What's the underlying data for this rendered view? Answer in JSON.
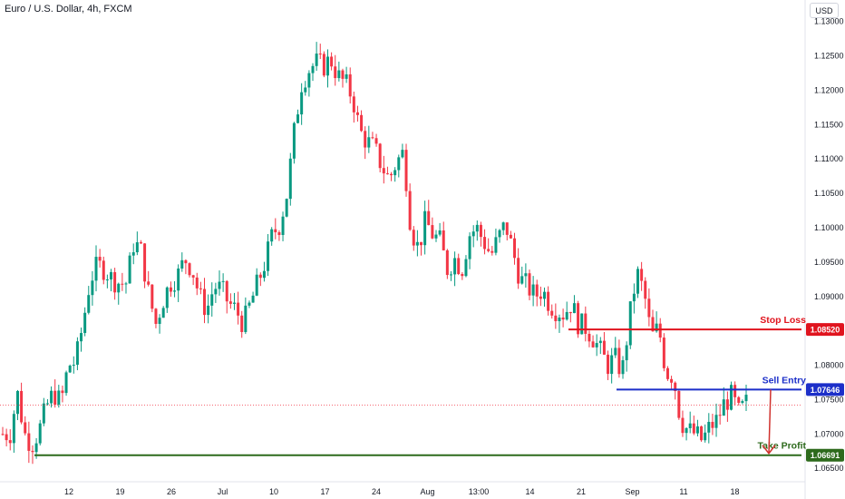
{
  "header": {
    "title": "Euro / U.S. Dollar, 4h, FXCM",
    "currency_button": "USD"
  },
  "colors": {
    "up": "#089981",
    "down": "#f23645",
    "stop_loss": "#e0141e",
    "sell_entry": "#1c2fc9",
    "take_profit": "#2d6a1c",
    "arrow": "#d0312d",
    "grid_text": "#131722",
    "last_price_line": "#f23645"
  },
  "chart_data": {
    "type": "candlestick",
    "symbol": "EURUSD",
    "timeframe": "4h",
    "y_axis": {
      "min": 1.0645,
      "max": 1.1318,
      "ticks": [
        "1.13000",
        "1.12500",
        "1.12000",
        "1.11500",
        "1.11000",
        "1.10500",
        "1.10000",
        "1.09500",
        "1.09000",
        "1.08500",
        "1.08000",
        "1.07500",
        "1.07000",
        "1.06500"
      ]
    },
    "x_axis": {
      "ticks": [
        "12",
        "19",
        "26",
        "Jul",
        "10",
        "17",
        "24",
        "Aug",
        "13:00",
        "14",
        "21",
        "Sep",
        "11",
        "18"
      ]
    },
    "price_path": [
      [
        0,
        1.07
      ],
      [
        2,
        1.07
      ],
      [
        4,
        1.076
      ],
      [
        6,
        1.07
      ],
      [
        8,
        1.0685
      ],
      [
        10,
        1.0705
      ],
      [
        12,
        1.074
      ],
      [
        14,
        1.076
      ],
      [
        16,
        1.0745
      ],
      [
        18,
        1.08
      ],
      [
        20,
        1.0805
      ],
      [
        22,
        1.086
      ],
      [
        24,
        1.0925
      ],
      [
        26,
        1.0945
      ],
      [
        28,
        1.094
      ],
      [
        30,
        1.0925
      ],
      [
        32,
        1.092
      ],
      [
        34,
        1.092
      ],
      [
        36,
        1.098
      ],
      [
        38,
        1.0965
      ],
      [
        40,
        1.0905
      ],
      [
        42,
        1.086
      ],
      [
        44,
        1.0895
      ],
      [
        46,
        1.092
      ],
      [
        48,
        1.093
      ],
      [
        50,
        1.0955
      ],
      [
        52,
        1.094
      ],
      [
        54,
        1.09
      ],
      [
        56,
        1.088
      ],
      [
        58,
        1.0915
      ],
      [
        60,
        1.091
      ],
      [
        62,
        1.089
      ],
      [
        64,
        1.088
      ],
      [
        66,
        1.086
      ],
      [
        68,
        1.089
      ],
      [
        70,
        1.092
      ],
      [
        72,
        1.095
      ],
      [
        74,
        1.099
      ],
      [
        76,
        1.1005
      ],
      [
        78,
        1.105
      ],
      [
        80,
        1.114
      ],
      [
        82,
        1.121
      ],
      [
        84,
        1.123
      ],
      [
        86,
        1.124
      ],
      [
        88,
        1.1235
      ],
      [
        90,
        1.1245
      ],
      [
        92,
        1.122
      ],
      [
        94,
        1.121
      ],
      [
        96,
        1.119
      ],
      [
        98,
        1.114
      ],
      [
        100,
        1.1125
      ],
      [
        102,
        1.1115
      ],
      [
        104,
        1.109
      ],
      [
        106,
        1.107
      ],
      [
        108,
        1.1095
      ],
      [
        110,
        1.111
      ],
      [
        112,
        1.1
      ],
      [
        114,
        1.097
      ],
      [
        116,
        1.101
      ],
      [
        118,
        1.099
      ],
      [
        120,
        1.098
      ],
      [
        122,
        1.094
      ],
      [
        124,
        1.0955
      ],
      [
        126,
        1.094
      ],
      [
        128,
        1.099
      ],
      [
        130,
        1.1
      ],
      [
        132,
        1.098
      ],
      [
        134,
        1.096
      ],
      [
        136,
        1.0985
      ],
      [
        138,
        1.1005
      ],
      [
        140,
        1.0965
      ],
      [
        142,
        1.0925
      ],
      [
        144,
        1.0915
      ],
      [
        146,
        1.09
      ],
      [
        148,
        1.091
      ],
      [
        150,
        1.089
      ],
      [
        152,
        1.088
      ],
      [
        154,
        1.0875
      ],
      [
        156,
        1.089
      ],
      [
        158,
        1.086
      ],
      [
        160,
        1.0855
      ],
      [
        162,
        1.084
      ],
      [
        164,
        1.082
      ],
      [
        166,
        1.08
      ],
      [
        168,
        1.081
      ],
      [
        170,
        1.079
      ],
      [
        172,
        1.087
      ],
      [
        174,
        1.0935
      ],
      [
        176,
        1.0905
      ],
      [
        178,
        1.084
      ],
      [
        180,
        1.0855
      ],
      [
        182,
        1.079
      ],
      [
        184,
        1.0785
      ],
      [
        186,
        1.072
      ],
      [
        188,
        1.0705
      ],
      [
        190,
        1.07
      ],
      [
        192,
        1.069
      ],
      [
        194,
        1.071
      ],
      [
        196,
        1.072
      ],
      [
        198,
        1.0745
      ],
      [
        200,
        1.0755
      ],
      [
        202,
        1.073
      ],
      [
        204,
        1.0745
      ]
    ],
    "levels": [
      {
        "name": "Stop Loss",
        "value": 1.0852,
        "label": "1.08520"
      },
      {
        "name": "Sell Entry",
        "value": 1.07646,
        "label": "1.07646"
      },
      {
        "name": "Take Profit",
        "value": 1.06691,
        "label": "1.06691"
      }
    ],
    "last_price": 1.0742,
    "grid": false
  }
}
